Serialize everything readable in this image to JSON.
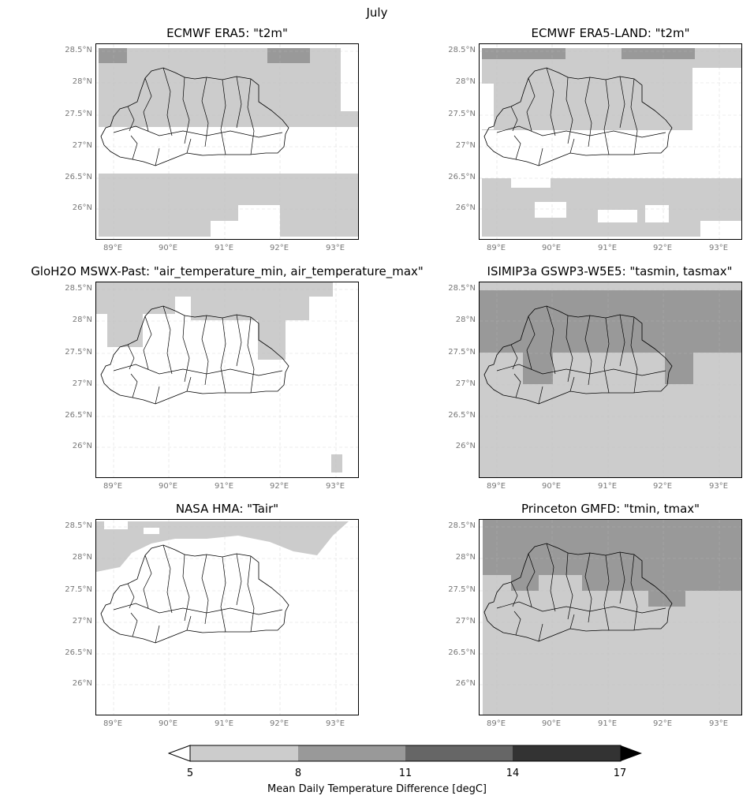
{
  "figure": {
    "suptitle": "July",
    "panels": [
      {
        "title": "ECMWF ERA5: \"t2m\""
      },
      {
        "title": "ECMWF ERA5-LAND: \"t2m\""
      },
      {
        "title": "GloH2O MSWX-Past: \"air_temperature_min, air_temperature_max\""
      },
      {
        "title": "ISIMIP3a GSWP3-W5E5: \"tasmin, tasmax\""
      },
      {
        "title": "NASA HMA: \"Tair\""
      },
      {
        "title": "Princeton GMFD: \"tmin, tmax\""
      }
    ],
    "lat_ticks": [
      "28.5°N",
      "28°N",
      "27.5°N",
      "27°N",
      "26.5°N",
      "26°N"
    ],
    "lon_ticks": [
      "89°E",
      "90°E",
      "91°E",
      "92°E",
      "93°E"
    ],
    "colorbar": {
      "label": "Mean Daily Temperature Difference [degC]",
      "ticks": [
        "5",
        "8",
        "11",
        "14",
        "17"
      ],
      "colors": [
        "#cccccc",
        "#999999",
        "#666666",
        "#333333"
      ],
      "extend": "both"
    }
  },
  "chart_data": {
    "type": "heatmap",
    "title": "July",
    "lon_range": [
      88.7,
      93.4
    ],
    "lat_range": [
      25.5,
      28.6
    ],
    "colorbar_label": "Mean Daily Temperature Difference [degC]",
    "colorbar_bounds": [
      5,
      8,
      11,
      14,
      17
    ]
  }
}
